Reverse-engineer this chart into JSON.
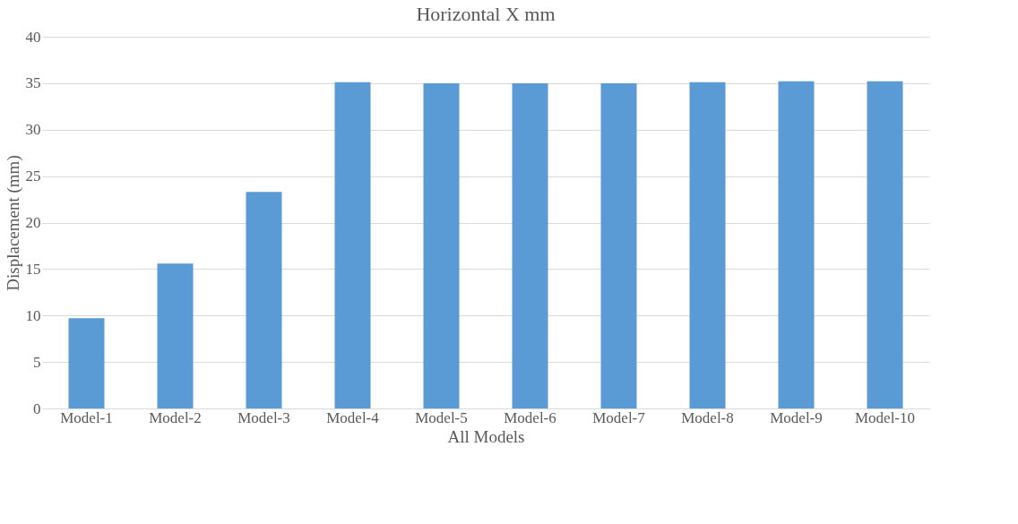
{
  "chart_data": {
    "type": "bar",
    "title": "Horizontal X mm",
    "xlabel": "All Models",
    "ylabel": "Displacement (mm)",
    "categories": [
      "Model-1",
      "Model-2",
      "Model-3",
      "Model-4",
      "Model-5",
      "Model-6",
      "Model-7",
      "Model-8",
      "Model-9",
      "Model-10"
    ],
    "values": [
      9.7,
      15.6,
      23.3,
      35.1,
      35.0,
      35.0,
      35.0,
      35.1,
      35.2,
      35.2
    ],
    "color": "#5b9bd5",
    "ylim": [
      0,
      40
    ],
    "yticks": [
      0,
      5,
      10,
      15,
      20,
      25,
      30,
      35,
      40
    ],
    "grid": "y"
  }
}
